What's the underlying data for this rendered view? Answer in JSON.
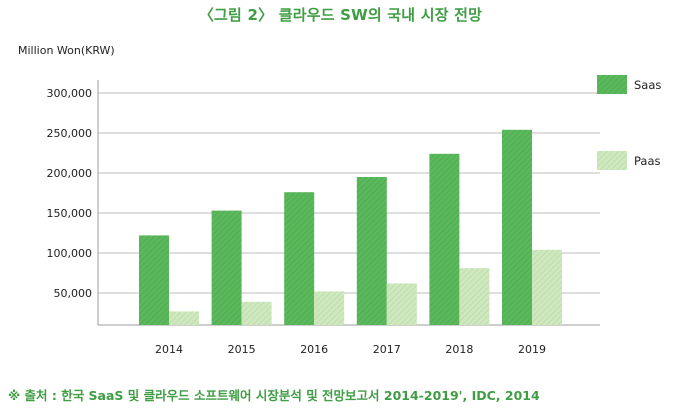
{
  "figure_title": "〈그림 2〉 클라우드 SW의 국내 시장 전망",
  "source_note": "※ 출처 : 한국 SaaS 및 클라우드 소프트웨어 시장분석 및 전망보고서 2014-2019', IDC, 2014",
  "colors": {
    "saas": "#5cb85c",
    "paas": "#c6e4b4",
    "accent_text": "#3f9d44",
    "grid": "#bdbdbd"
  },
  "chart_data": {
    "type": "bar",
    "title": "〈그림 2〉 클라우드 SW의 국내 시장 전망",
    "ylabel": "Million Won(KRW)",
    "xlabel": "",
    "categories": [
      "2014",
      "2015",
      "2016",
      "2017",
      "2018",
      "2019"
    ],
    "series": [
      {
        "name": "Saas",
        "values": [
          122000,
          153000,
          176000,
          195000,
          224000,
          254000
        ]
      },
      {
        "name": "Paas",
        "values": [
          27000,
          39000,
          52000,
          62000,
          81000,
          104000
        ]
      }
    ],
    "ylim": [
      10000,
      300000
    ],
    "yticks": [
      50000,
      100000,
      150000,
      200000,
      250000,
      300000
    ],
    "ytick_labels": [
      "50,000",
      "100,000",
      "150,000",
      "200,000",
      "250,000",
      "300,000"
    ],
    "grid": true,
    "legend_position": "right"
  }
}
